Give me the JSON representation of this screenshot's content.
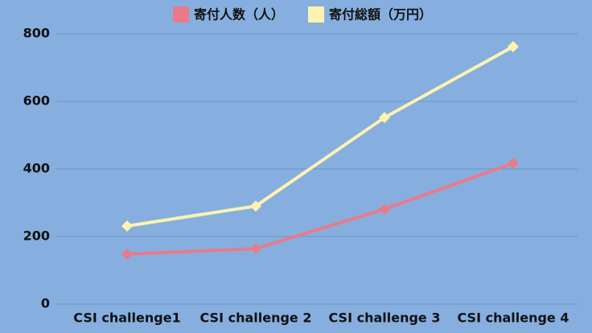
{
  "chart_data": {
    "type": "line",
    "categories": [
      "CSI challenge1",
      "CSI challenge 2",
      "CSI challenge 3",
      "CSI challenge 4"
    ],
    "series": [
      {
        "name": "寄付人数（人）",
        "color": "#e97a8c",
        "values": [
          148,
          164,
          281,
          417
        ]
      },
      {
        "name": "寄付総額（万円）",
        "color": "#fdf2b0",
        "values": [
          231,
          290,
          552,
          762
        ]
      }
    ],
    "ylim": [
      0,
      800
    ],
    "yticks": [
      0,
      200,
      400,
      600,
      800
    ],
    "grid": true,
    "legend": "top"
  }
}
